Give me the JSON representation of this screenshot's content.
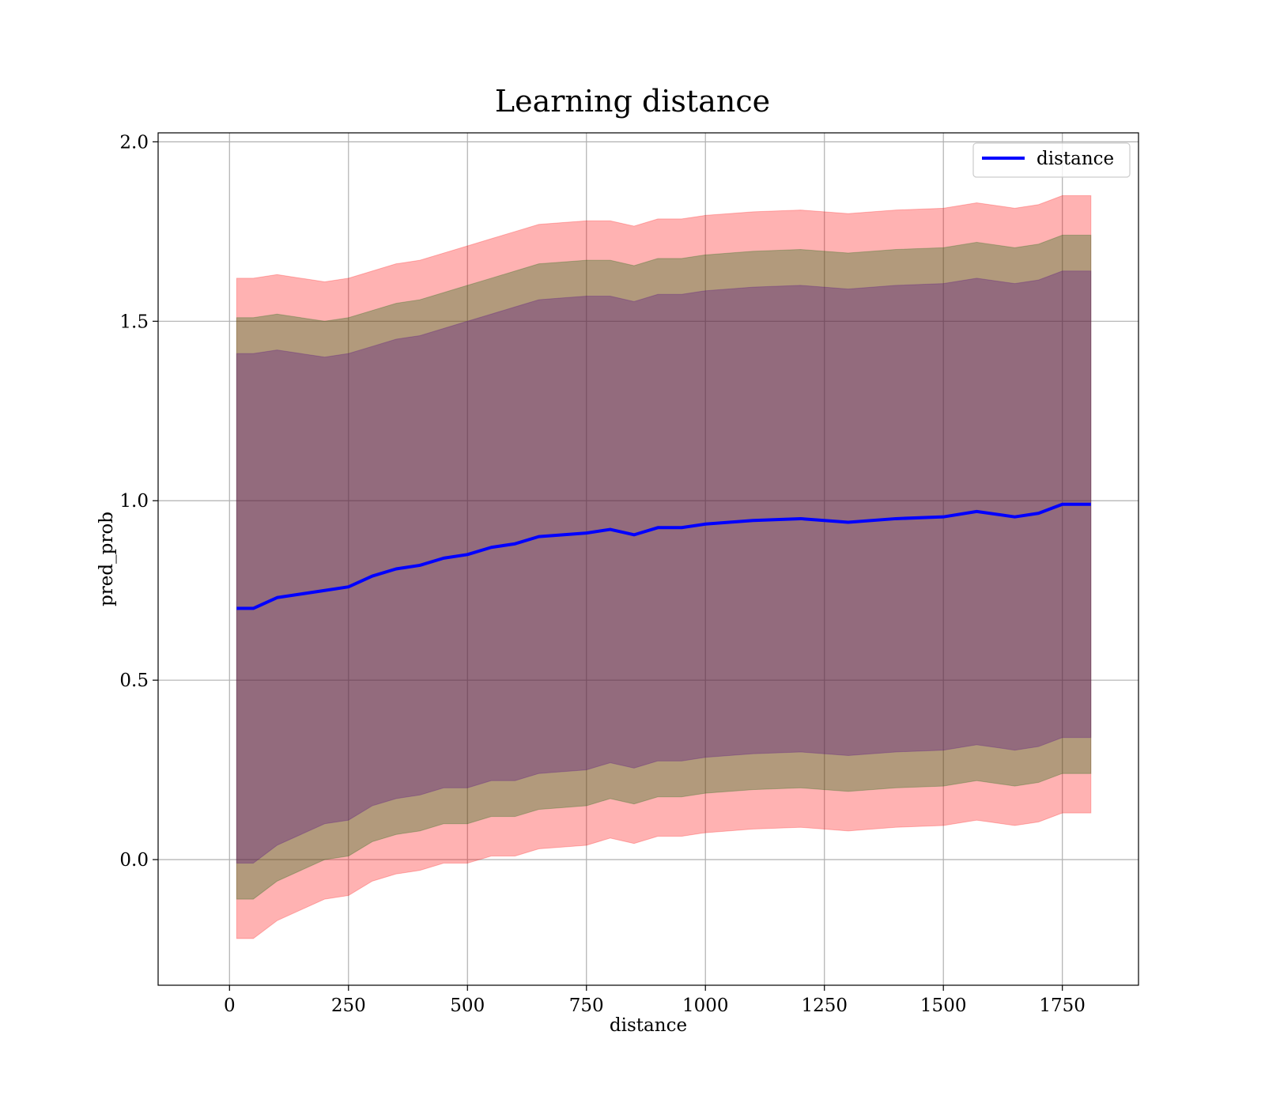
{
  "chart_data": {
    "type": "area",
    "title": "Learning distance",
    "xlabel": "distance",
    "ylabel": "pred_prob",
    "xlim": [
      -150,
      1910
    ],
    "ylim": [
      -0.35,
      2.025
    ],
    "x_ticks": [
      0,
      250,
      500,
      750,
      1000,
      1250,
      1500,
      1750
    ],
    "x_tick_labels": [
      "0",
      "250",
      "500",
      "750",
      "1000",
      "1250",
      "1500",
      "1750"
    ],
    "y_ticks": [
      0.0,
      0.5,
      1.0,
      1.5,
      2.0
    ],
    "y_tick_labels": [
      "0.0",
      "0.5",
      "1.0",
      "1.5",
      "2.0"
    ],
    "grid": true,
    "legend": {
      "position": "top-right",
      "entries": [
        "distance"
      ]
    },
    "x": [
      15,
      50,
      100,
      150,
      200,
      250,
      300,
      350,
      400,
      450,
      500,
      550,
      600,
      650,
      700,
      750,
      800,
      850,
      900,
      950,
      1000,
      1100,
      1200,
      1300,
      1400,
      1500,
      1570,
      1650,
      1700,
      1750,
      1810
    ],
    "series": [
      {
        "name": "distance",
        "color": "#0000ff",
        "values": [
          0.7,
          0.7,
          0.73,
          0.74,
          0.75,
          0.76,
          0.79,
          0.81,
          0.82,
          0.84,
          0.85,
          0.87,
          0.88,
          0.9,
          0.905,
          0.91,
          0.92,
          0.905,
          0.925,
          0.925,
          0.935,
          0.945,
          0.95,
          0.94,
          0.95,
          0.955,
          0.97,
          0.955,
          0.965,
          0.99,
          0.99
        ]
      }
    ],
    "bands": [
      {
        "color": "#ff0000",
        "opacity": 0.3,
        "sd": 3,
        "half_width": [
          0.92,
          0.92,
          0.9,
          0.88,
          0.86,
          0.86,
          0.85,
          0.85,
          0.85,
          0.85,
          0.86,
          0.86,
          0.87,
          0.87,
          0.87,
          0.87,
          0.86,
          0.86,
          0.86,
          0.86,
          0.86,
          0.86,
          0.86,
          0.86,
          0.86,
          0.86,
          0.86,
          0.86,
          0.86,
          0.86,
          0.86
        ]
      },
      {
        "color": "#006400",
        "opacity": 0.3,
        "sd": 2,
        "half_width": [
          0.81,
          0.81,
          0.79,
          0.77,
          0.75,
          0.75,
          0.74,
          0.74,
          0.74,
          0.74,
          0.75,
          0.75,
          0.76,
          0.76,
          0.76,
          0.76,
          0.75,
          0.75,
          0.75,
          0.75,
          0.75,
          0.75,
          0.75,
          0.75,
          0.75,
          0.75,
          0.75,
          0.75,
          0.75,
          0.75,
          0.75
        ]
      },
      {
        "color": "#4b0082",
        "opacity": 0.3,
        "sd": 1,
        "half_width": [
          0.71,
          0.71,
          0.69,
          0.67,
          0.65,
          0.65,
          0.64,
          0.64,
          0.64,
          0.64,
          0.65,
          0.65,
          0.66,
          0.66,
          0.66,
          0.66,
          0.65,
          0.65,
          0.65,
          0.65,
          0.65,
          0.65,
          0.65,
          0.65,
          0.65,
          0.65,
          0.65,
          0.65,
          0.65,
          0.65,
          0.65
        ]
      }
    ]
  }
}
